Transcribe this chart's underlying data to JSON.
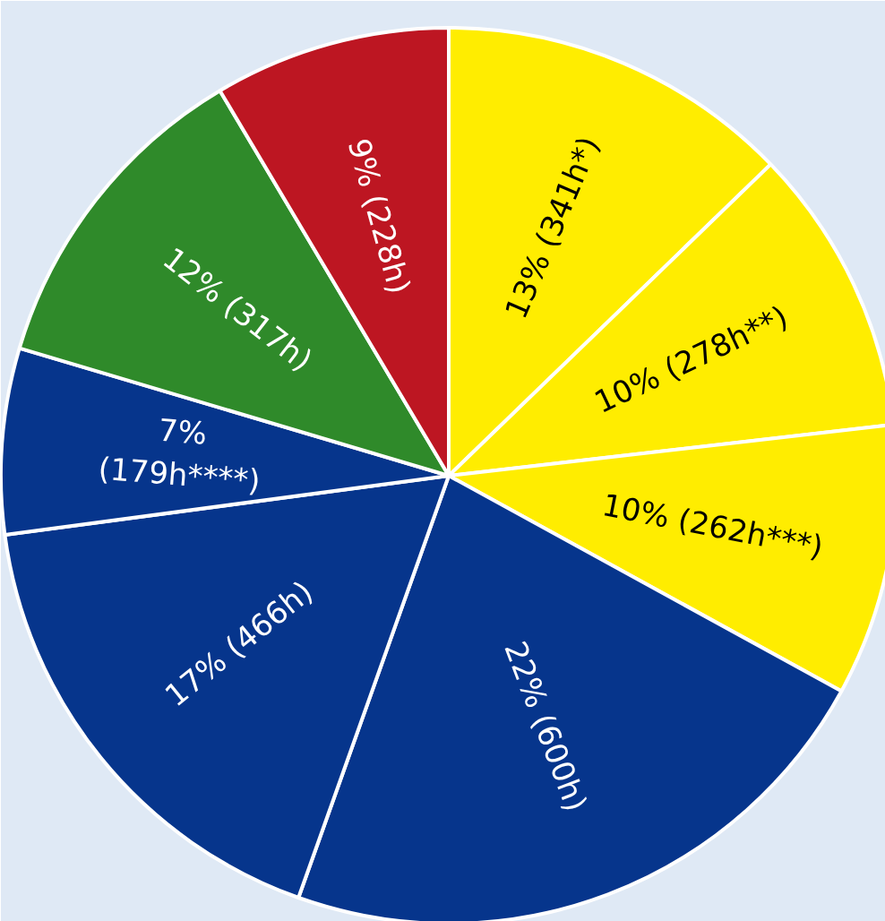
{
  "chart_data": {
    "type": "pie",
    "categories": [
      null,
      null,
      null,
      null,
      null,
      null,
      null,
      null
    ],
    "values": [
      341,
      278,
      262,
      600,
      466,
      179,
      317,
      228
    ],
    "colors": [
      "#ffed00",
      "#ffed00",
      "#ffed00",
      "#06358c",
      "#06358c",
      "#06358c",
      "#2f8a2a",
      "#bd1622"
    ],
    "value_labels": [
      "13% (341h*)",
      "10% (278h**)",
      "10% (262h***)",
      "22% (600h)",
      "17% (466h)",
      "7%\n(179h****)",
      "12% (317h)",
      "9% (228h)"
    ]
  }
}
